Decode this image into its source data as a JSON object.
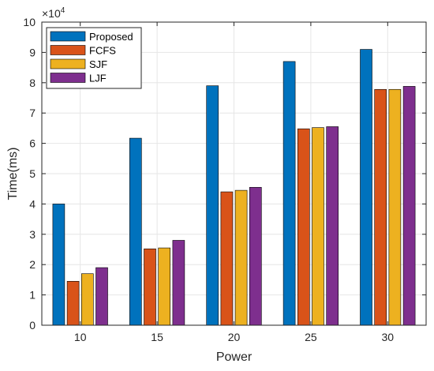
{
  "chart_data": {
    "type": "bar",
    "title": "",
    "xlabel": "Power",
    "ylabel": "Time(ms)",
    "y_multiplier_base": "×10",
    "y_multiplier_exp": "4",
    "categories": [
      "10",
      "15",
      "20",
      "25",
      "30"
    ],
    "ylim": [
      0,
      10
    ],
    "yticks": [
      "0",
      "1",
      "2",
      "3",
      "4",
      "5",
      "6",
      "7",
      "8",
      "9",
      "10"
    ],
    "grid": true,
    "legend_position": "top-left",
    "series": [
      {
        "name": "Proposed",
        "color": "#0072BD",
        "values": [
          4.0,
          6.17,
          7.9,
          8.7,
          9.1
        ]
      },
      {
        "name": "FCFS",
        "color": "#D95319",
        "values": [
          1.45,
          2.52,
          4.4,
          6.48,
          7.78
        ]
      },
      {
        "name": "SJF",
        "color": "#EDB120",
        "values": [
          1.7,
          2.55,
          4.45,
          6.52,
          7.78
        ]
      },
      {
        "name": "LJF",
        "color": "#7E2F8E",
        "values": [
          1.9,
          2.8,
          4.55,
          6.55,
          7.88
        ]
      }
    ]
  }
}
